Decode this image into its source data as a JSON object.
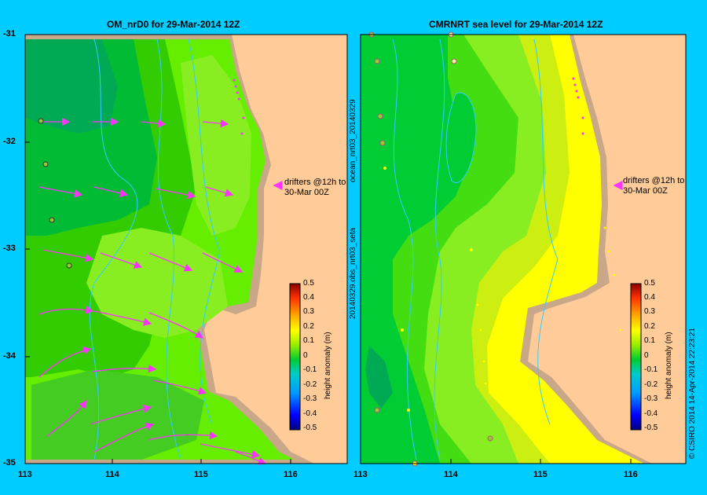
{
  "left_panel": {
    "title": "OM_nrD0 for 29-Mar-2014 12Z",
    "annotation_line1": "drifters @12h to",
    "annotation_line2": "30-Mar 00Z"
  },
  "right_panel": {
    "title": "CMRNRT sea level  for 29-Mar-2014 12Z",
    "annotation_line1": "drifters @12h to",
    "annotation_line2": "30-Mar 00Z",
    "side_label_top": "ocean_nrt03_20140329",
    "side_label_bottom": "20140329.obs_nrt03_seta"
  },
  "y_ticks": [
    "-31",
    "-32",
    "-33",
    "-34",
    "-35"
  ],
  "x_ticks_left": [
    "113",
    "114",
    "115",
    "116"
  ],
  "x_ticks_right": [
    "113",
    "114",
    "115",
    "116"
  ],
  "colorbar": {
    "label": "height anomaly (m)",
    "ticks": [
      "0.5",
      "0.4",
      "0.3",
      "0.2",
      "0.1",
      "0",
      "-0.1",
      "-0.2",
      "-0.3",
      "-0.4",
      "-0.5"
    ]
  },
  "credit": "© CSIRO 2014   14-Apr-2014 22:23:21",
  "colors": {
    "background": "#00ccff",
    "land": "#ffcc99",
    "shelf": "#c8a888",
    "drifter": "#ff33ff",
    "contour": "#33ccff"
  }
}
